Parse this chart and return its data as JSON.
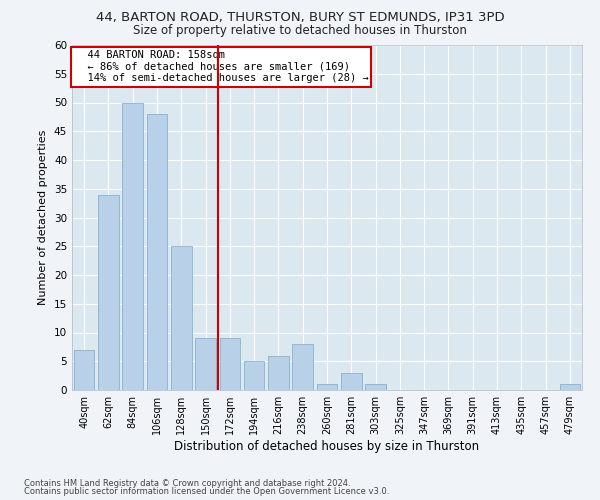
{
  "title": "44, BARTON ROAD, THURSTON, BURY ST EDMUNDS, IP31 3PD",
  "subtitle": "Size of property relative to detached houses in Thurston",
  "xlabel": "Distribution of detached houses by size in Thurston",
  "ylabel": "Number of detached properties",
  "categories": [
    "40sqm",
    "62sqm",
    "84sqm",
    "106sqm",
    "128sqm",
    "150sqm",
    "172sqm",
    "194sqm",
    "216sqm",
    "238sqm",
    "260sqm",
    "281sqm",
    "303sqm",
    "325sqm",
    "347sqm",
    "369sqm",
    "391sqm",
    "413sqm",
    "435sqm",
    "457sqm",
    "479sqm"
  ],
  "values": [
    7,
    34,
    50,
    48,
    25,
    9,
    9,
    5,
    6,
    8,
    1,
    3,
    1,
    0,
    0,
    0,
    0,
    0,
    0,
    0,
    1
  ],
  "bar_color": "#b8d0e8",
  "bar_edge_color": "#7aaac8",
  "red_line_x": 5.5,
  "annotation_line1": "  44 BARTON ROAD: 158sqm",
  "annotation_line2": "  ← 86% of detached houses are smaller (169)",
  "annotation_line3": "  14% of semi-detached houses are larger (28) →",
  "annotation_box_color": "#ffffff",
  "annotation_box_edge": "#cc0000",
  "red_line_color": "#cc0000",
  "ylim": [
    0,
    60
  ],
  "yticks": [
    0,
    5,
    10,
    15,
    20,
    25,
    30,
    35,
    40,
    45,
    50,
    55,
    60
  ],
  "footer1": "Contains HM Land Registry data © Crown copyright and database right 2024.",
  "footer2": "Contains public sector information licensed under the Open Government Licence v3.0.",
  "bg_color": "#f0f4f8",
  "plot_bg_color": "#dce8f0"
}
